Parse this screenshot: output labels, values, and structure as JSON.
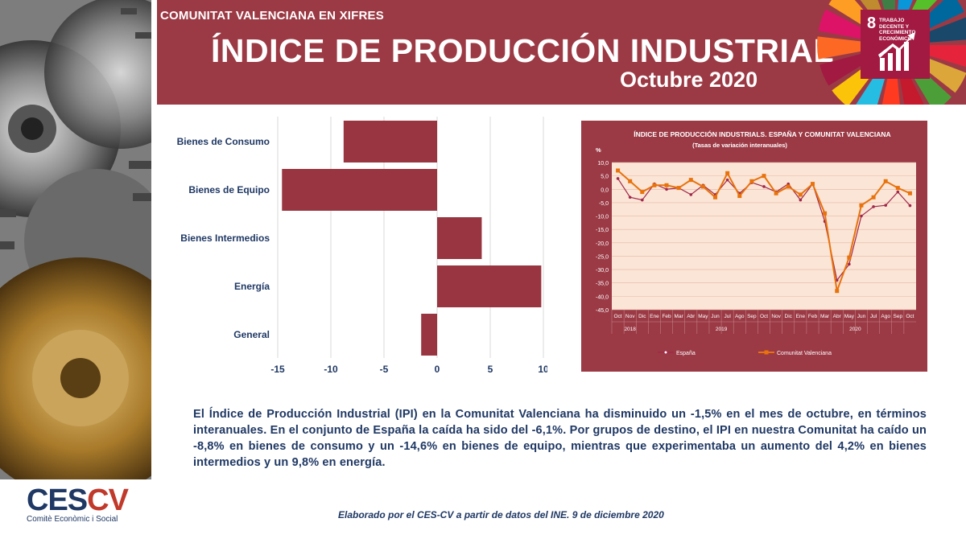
{
  "header": {
    "subtitle": "COMUNITAT VALENCIANA EN XIFRES",
    "title": "ÍNDICE DE PRODUCCIÓN INDUSTRIAL",
    "period": "Octubre 2020"
  },
  "sdg": {
    "number": "8",
    "label": "Trabajo decente y crecimiento económico"
  },
  "colors": {
    "brand": "#9b3a45",
    "bar": "#983540",
    "text": "#1f3864",
    "cv_line": "#e8720c",
    "es_line": "#a0284a"
  },
  "chart_data": [
    {
      "type": "bar",
      "orientation": "horizontal",
      "categories": [
        "Bienes de Consumo",
        "Bienes de Equipo",
        "Bienes Intermedios",
        "Energía",
        "General"
      ],
      "values": [
        -8.8,
        -14.6,
        4.2,
        9.8,
        -1.5
      ],
      "xlim": [
        -15,
        10
      ],
      "xticks": [
        "-15",
        "-10",
        "-5",
        "0",
        "5",
        "10"
      ],
      "grid": true
    },
    {
      "type": "line",
      "title": "ÍNDICE DE PRODUCCIÓN INDUSTRIALS. ESPAÑA Y COMUNITAT VALENCIANA",
      "subtitle": "(Tasas de variación interanuales)",
      "ylabel": "%",
      "ylim": [
        -45,
        10
      ],
      "yticks": [
        "10,0",
        "5,0",
        "0,0",
        "-5,0",
        "-10,0",
        "-15,0",
        "-20,0",
        "-25,0",
        "-30,0",
        "-35,0",
        "-40,0",
        "-45,0"
      ],
      "categories": [
        "Oct",
        "Nov",
        "Dic",
        "Ene",
        "Feb",
        "Mar",
        "Abr",
        "May",
        "Jun",
        "Jul",
        "Ago",
        "Sep",
        "Oct",
        "Nov",
        "Dic",
        "Ene",
        "Feb",
        "Mar",
        "Abr",
        "May",
        "Jun",
        "Jul",
        "Ago",
        "Sep",
        "Oct"
      ],
      "years": [
        {
          "label": "2018",
          "start": 0,
          "end": 2
        },
        {
          "label": "2019",
          "start": 3,
          "end": 14
        },
        {
          "label": "2020",
          "start": 15,
          "end": 24
        }
      ],
      "series": [
        {
          "name": "España",
          "values": [
            4.0,
            -3.0,
            -4.0,
            2.0,
            0.0,
            0.5,
            -2.0,
            1.5,
            -2.0,
            3.5,
            -1.5,
            2.5,
            1.0,
            -1.0,
            2.0,
            -4.0,
            2.0,
            -12.0,
            -34.0,
            -28.0,
            -10.0,
            -6.5,
            -6.0,
            -1.0,
            -6.1
          ]
        },
        {
          "name": "Comunitat Valenciana",
          "values": [
            7.0,
            3.0,
            -1.0,
            1.5,
            1.5,
            0.5,
            3.5,
            1.0,
            -3.0,
            6.0,
            -2.5,
            3.0,
            5.0,
            -1.5,
            1.0,
            -2.0,
            2.0,
            -9.0,
            -38.0,
            -25.5,
            -6.0,
            -3.0,
            3.0,
            0.5,
            -1.5
          ]
        }
      ],
      "legend_position": "bottom",
      "grid": true
    }
  ],
  "body_text": "El Índice de Producción Industrial (IPI) en la Comunitat Valenciana ha disminuido un -1,5% en el mes de octubre, en términos interanuales. En el conjunto de España la caída ha sido del -6,1%. Por grupos de destino, el IPI en nuestra Comunitat ha caído un -8,8% en bienes de consumo y un -14,6% en bienes de equipo, mientras que experimentaba un aumento del 4,2% en bienes intermedios y un 9,8% en energía.",
  "source": "Elaborado por el CES-CV a partir de datos del INE. 9 de diciembre 2020",
  "logo": {
    "main_a": "CES",
    "main_b": "CV",
    "sub": "Comitè Econòmic i Social"
  }
}
